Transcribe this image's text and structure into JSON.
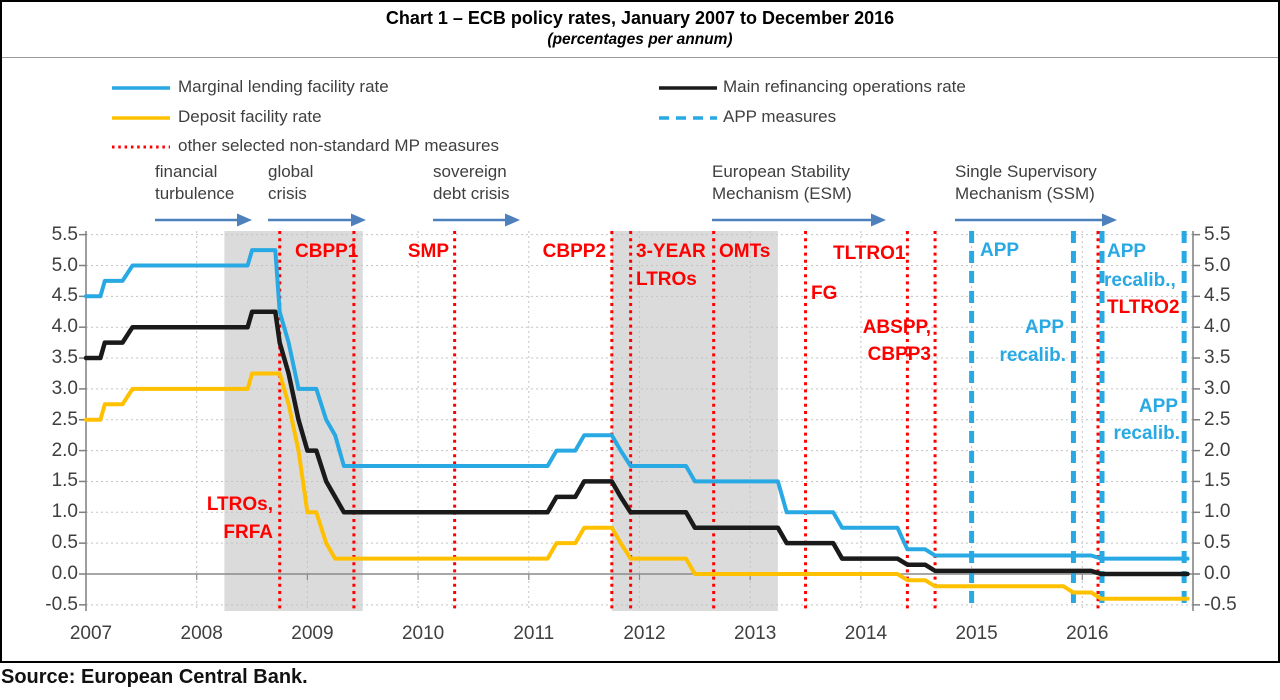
{
  "title": "Chart 1 – ECB policy rates, January 2007 to December 2016",
  "subtitle": "(percentages per annum)",
  "source": "Source: European Central Bank.",
  "colors": {
    "series_blue": "#29A9E3",
    "series_black": "#1A1A1A",
    "series_yellow": "#FFC000",
    "event_red": "#FF0000",
    "app_blue": "#29A9E3",
    "arrow_blue": "#4E80BC",
    "recession_band": "#DBDBDB",
    "grid": "#C3C3C3",
    "axis": "#7F7F7F",
    "text": "#3F3F3F"
  },
  "legend": {
    "items": [
      {
        "label": "Marginal lending facility rate",
        "style": "solid",
        "color": "#29A9E3",
        "col": 0,
        "row": 0
      },
      {
        "label": "Main refinancing operations rate",
        "style": "solid",
        "color": "#1A1A1A",
        "col": 1,
        "row": 0
      },
      {
        "label": "Deposit facility rate",
        "style": "solid",
        "color": "#FFC000",
        "col": 0,
        "row": 1
      },
      {
        "label": "APP measures",
        "style": "dashed",
        "color": "#29A9E3",
        "col": 1,
        "row": 1
      },
      {
        "label": "other selected non-standard MP measures",
        "style": "dotted",
        "color": "#FF0000",
        "col": 0,
        "row": 2
      }
    ]
  },
  "era_annotations": [
    {
      "lines": [
        "financial",
        "turbulence"
      ],
      "x": 155,
      "arrow_from": 155,
      "arrow_to": 252
    },
    {
      "lines": [
        "global",
        "crisis"
      ],
      "x": 268,
      "arrow_from": 268,
      "arrow_to": 366
    },
    {
      "lines": [
        "sovereign",
        "debt crisis"
      ],
      "x": 433,
      "arrow_from": 433,
      "arrow_to": 520
    },
    {
      "lines": [
        "European Stability",
        "Mechanism (ESM)"
      ],
      "x": 712,
      "arrow_from": 712,
      "arrow_to": 886
    },
    {
      "lines": [
        "Single Supervisory",
        "Mechanism (SSM)"
      ],
      "x": 955,
      "arrow_from": 955,
      "arrow_to": 1117
    }
  ],
  "chart_data": {
    "type": "line",
    "title": "Chart 1 – ECB policy rates, January 2007 to December 2016",
    "subtitle": "(percentages per annum)",
    "xlabel": "",
    "ylabel": "percentages per annum",
    "x_range": [
      2007,
      2017
    ],
    "ylim": [
      -0.5,
      5.5
    ],
    "y_tick_step": 0.5,
    "y_tick_labels": [
      "5.5",
      "5.0",
      "4.5",
      "4.0",
      "3.5",
      "3.0",
      "2.5",
      "2.0",
      "1.5",
      "1.0",
      "0.5",
      "0.0",
      "-0.5"
    ],
    "x_tick_years": [
      2007,
      2008,
      2009,
      2010,
      2011,
      2012,
      2013,
      2014,
      2015,
      2016
    ],
    "grid": true,
    "legend_position": "top",
    "recession_bands": [
      [
        2008.25,
        2009.5
      ],
      [
        2011.75,
        2013.25
      ]
    ],
    "series": [
      {
        "name": "Marginal lending facility rate",
        "color": "#29A9E3",
        "width": 4,
        "points": [
          [
            2007,
            4.5
          ],
          [
            2007.13,
            4.5
          ],
          [
            2007.17,
            4.75
          ],
          [
            2007.33,
            4.75
          ],
          [
            2007.42,
            5.0
          ],
          [
            2008.46,
            5.0
          ],
          [
            2008.5,
            5.25
          ],
          [
            2008.71,
            5.25
          ],
          [
            2008.75,
            4.25
          ],
          [
            2008.83,
            3.75
          ],
          [
            2008.92,
            3.0
          ],
          [
            2009.08,
            3.0
          ],
          [
            2009.17,
            2.5
          ],
          [
            2009.25,
            2.25
          ],
          [
            2009.33,
            1.75
          ],
          [
            2011.17,
            1.75
          ],
          [
            2011.25,
            2.0
          ],
          [
            2011.42,
            2.0
          ],
          [
            2011.5,
            2.25
          ],
          [
            2011.75,
            2.25
          ],
          [
            2011.83,
            2.0
          ],
          [
            2011.92,
            1.75
          ],
          [
            2012.42,
            1.75
          ],
          [
            2012.5,
            1.5
          ],
          [
            2013.25,
            1.5
          ],
          [
            2013.33,
            1.0
          ],
          [
            2013.75,
            1.0
          ],
          [
            2013.83,
            0.75
          ],
          [
            2014.33,
            0.75
          ],
          [
            2014.42,
            0.4
          ],
          [
            2014.58,
            0.4
          ],
          [
            2014.67,
            0.3
          ],
          [
            2016.08,
            0.3
          ],
          [
            2016.17,
            0.25
          ],
          [
            2016.95,
            0.25
          ]
        ]
      },
      {
        "name": "Main refinancing operations rate",
        "color": "#1A1A1A",
        "width": 4.5,
        "points": [
          [
            2007,
            3.5
          ],
          [
            2007.13,
            3.5
          ],
          [
            2007.17,
            3.75
          ],
          [
            2007.33,
            3.75
          ],
          [
            2007.42,
            4.0
          ],
          [
            2008.46,
            4.0
          ],
          [
            2008.5,
            4.25
          ],
          [
            2008.71,
            4.25
          ],
          [
            2008.75,
            3.75
          ],
          [
            2008.83,
            3.25
          ],
          [
            2008.92,
            2.5
          ],
          [
            2009.0,
            2.0
          ],
          [
            2009.08,
            2.0
          ],
          [
            2009.17,
            1.5
          ],
          [
            2009.25,
            1.25
          ],
          [
            2009.33,
            1.0
          ],
          [
            2011.17,
            1.0
          ],
          [
            2011.25,
            1.25
          ],
          [
            2011.42,
            1.25
          ],
          [
            2011.5,
            1.5
          ],
          [
            2011.75,
            1.5
          ],
          [
            2011.83,
            1.25
          ],
          [
            2011.92,
            1.0
          ],
          [
            2012.42,
            1.0
          ],
          [
            2012.5,
            0.75
          ],
          [
            2013.25,
            0.75
          ],
          [
            2013.33,
            0.5
          ],
          [
            2013.75,
            0.5
          ],
          [
            2013.83,
            0.25
          ],
          [
            2014.33,
            0.25
          ],
          [
            2014.42,
            0.15
          ],
          [
            2014.58,
            0.15
          ],
          [
            2014.67,
            0.05
          ],
          [
            2016.08,
            0.05
          ],
          [
            2016.17,
            0.0
          ],
          [
            2016.95,
            0.0
          ]
        ]
      },
      {
        "name": "Deposit facility rate",
        "color": "#FFC000",
        "width": 4,
        "points": [
          [
            2007,
            2.5
          ],
          [
            2007.13,
            2.5
          ],
          [
            2007.17,
            2.75
          ],
          [
            2007.33,
            2.75
          ],
          [
            2007.42,
            3.0
          ],
          [
            2008.46,
            3.0
          ],
          [
            2008.5,
            3.25
          ],
          [
            2008.75,
            3.25
          ],
          [
            2008.83,
            2.75
          ],
          [
            2008.92,
            2.0
          ],
          [
            2009.0,
            1.0
          ],
          [
            2009.08,
            1.0
          ],
          [
            2009.17,
            0.5
          ],
          [
            2009.25,
            0.25
          ],
          [
            2011.17,
            0.25
          ],
          [
            2011.25,
            0.5
          ],
          [
            2011.42,
            0.5
          ],
          [
            2011.5,
            0.75
          ],
          [
            2011.75,
            0.75
          ],
          [
            2011.83,
            0.5
          ],
          [
            2011.92,
            0.25
          ],
          [
            2012.42,
            0.25
          ],
          [
            2012.5,
            0.0
          ],
          [
            2014.33,
            0.0
          ],
          [
            2014.42,
            -0.1
          ],
          [
            2014.58,
            -0.1
          ],
          [
            2014.67,
            -0.2
          ],
          [
            2015.83,
            -0.2
          ],
          [
            2015.92,
            -0.3
          ],
          [
            2016.08,
            -0.3
          ],
          [
            2016.17,
            -0.4
          ],
          [
            2016.95,
            -0.4
          ]
        ]
      }
    ],
    "event_lines": [
      {
        "x": 2008.75,
        "style": "red-dotted",
        "dx": 0
      },
      {
        "x": 2009.42,
        "style": "red-dotted",
        "dx": 0
      },
      {
        "x": 2010.33,
        "style": "red-dotted",
        "dx": 0
      },
      {
        "x": 2011.75,
        "style": "red-dotted",
        "dx": 0
      },
      {
        "x": 2011.92,
        "style": "red-dotted",
        "dx": 0
      },
      {
        "x": 2012.67,
        "style": "red-dotted",
        "dx": 0
      },
      {
        "x": 2013.5,
        "style": "red-dotted",
        "dx": 0
      },
      {
        "x": 2014.42,
        "style": "red-dotted",
        "dx": 0
      },
      {
        "x": 2014.67,
        "style": "red-dotted",
        "dx": 0
      },
      {
        "x": 2016.16,
        "style": "red-dotted",
        "dx": -2
      },
      {
        "x": 2015.0,
        "style": "blue-dashed",
        "dx": 0
      },
      {
        "x": 2015.92,
        "style": "blue-dashed",
        "dx": 0
      },
      {
        "x": 2016.16,
        "style": "blue-dashed",
        "dx": 2
      },
      {
        "x": 2016.92,
        "style": "blue-dashed",
        "dx": 0
      }
    ],
    "event_labels": [
      {
        "text": "LTROs,",
        "color": "red",
        "x": 273,
        "top": 494,
        "align": "right"
      },
      {
        "text": "FRFA",
        "color": "red",
        "x": 273,
        "top": 522,
        "align": "right"
      },
      {
        "text": "CBPP1",
        "color": "red",
        "x": 295,
        "top": 241,
        "align": "left"
      },
      {
        "text": "SMP",
        "color": "red",
        "x": 449,
        "top": 241,
        "align": "right"
      },
      {
        "text": "CBPP2",
        "color": "red",
        "x": 606,
        "top": 241,
        "align": "right"
      },
      {
        "text": "3-YEAR",
        "color": "red",
        "x": 636,
        "top": 241,
        "align": "left"
      },
      {
        "text": "LTROs",
        "color": "red",
        "x": 636,
        "top": 269,
        "align": "left"
      },
      {
        "text": "OMTs",
        "color": "red",
        "x": 719,
        "top": 241,
        "align": "left"
      },
      {
        "text": "FG",
        "color": "red",
        "x": 811,
        "top": 283,
        "align": "left"
      },
      {
        "text": "TLTRO1",
        "color": "red",
        "x": 833,
        "top": 243,
        "align": "left"
      },
      {
        "text": "ABSPP,",
        "color": "red",
        "x": 931,
        "top": 317,
        "align": "right"
      },
      {
        "text": "CBPP3",
        "color": "red",
        "x": 931,
        "top": 344,
        "align": "right"
      },
      {
        "text": "APP",
        "color": "blue",
        "x": 980,
        "top": 240,
        "align": "left"
      },
      {
        "text": "APP",
        "color": "blue",
        "x": 1064,
        "top": 317,
        "align": "right"
      },
      {
        "text": "recalib.",
        "color": "blue",
        "x": 1066,
        "top": 345,
        "align": "right"
      },
      {
        "text": "APP",
        "color": "blue",
        "x": 1107,
        "top": 241,
        "align": "left"
      },
      {
        "text": "recalib.,",
        "color": "blue",
        "x": 1104,
        "top": 270,
        "align": "left"
      },
      {
        "text": "TLTRO2",
        "color": "red",
        "x": 1107,
        "top": 297,
        "align": "left"
      },
      {
        "text": "APP",
        "color": "blue",
        "x": 1178,
        "top": 396,
        "align": "right"
      },
      {
        "text": "recalib.",
        "color": "blue",
        "x": 1180,
        "top": 423,
        "align": "right"
      }
    ]
  }
}
